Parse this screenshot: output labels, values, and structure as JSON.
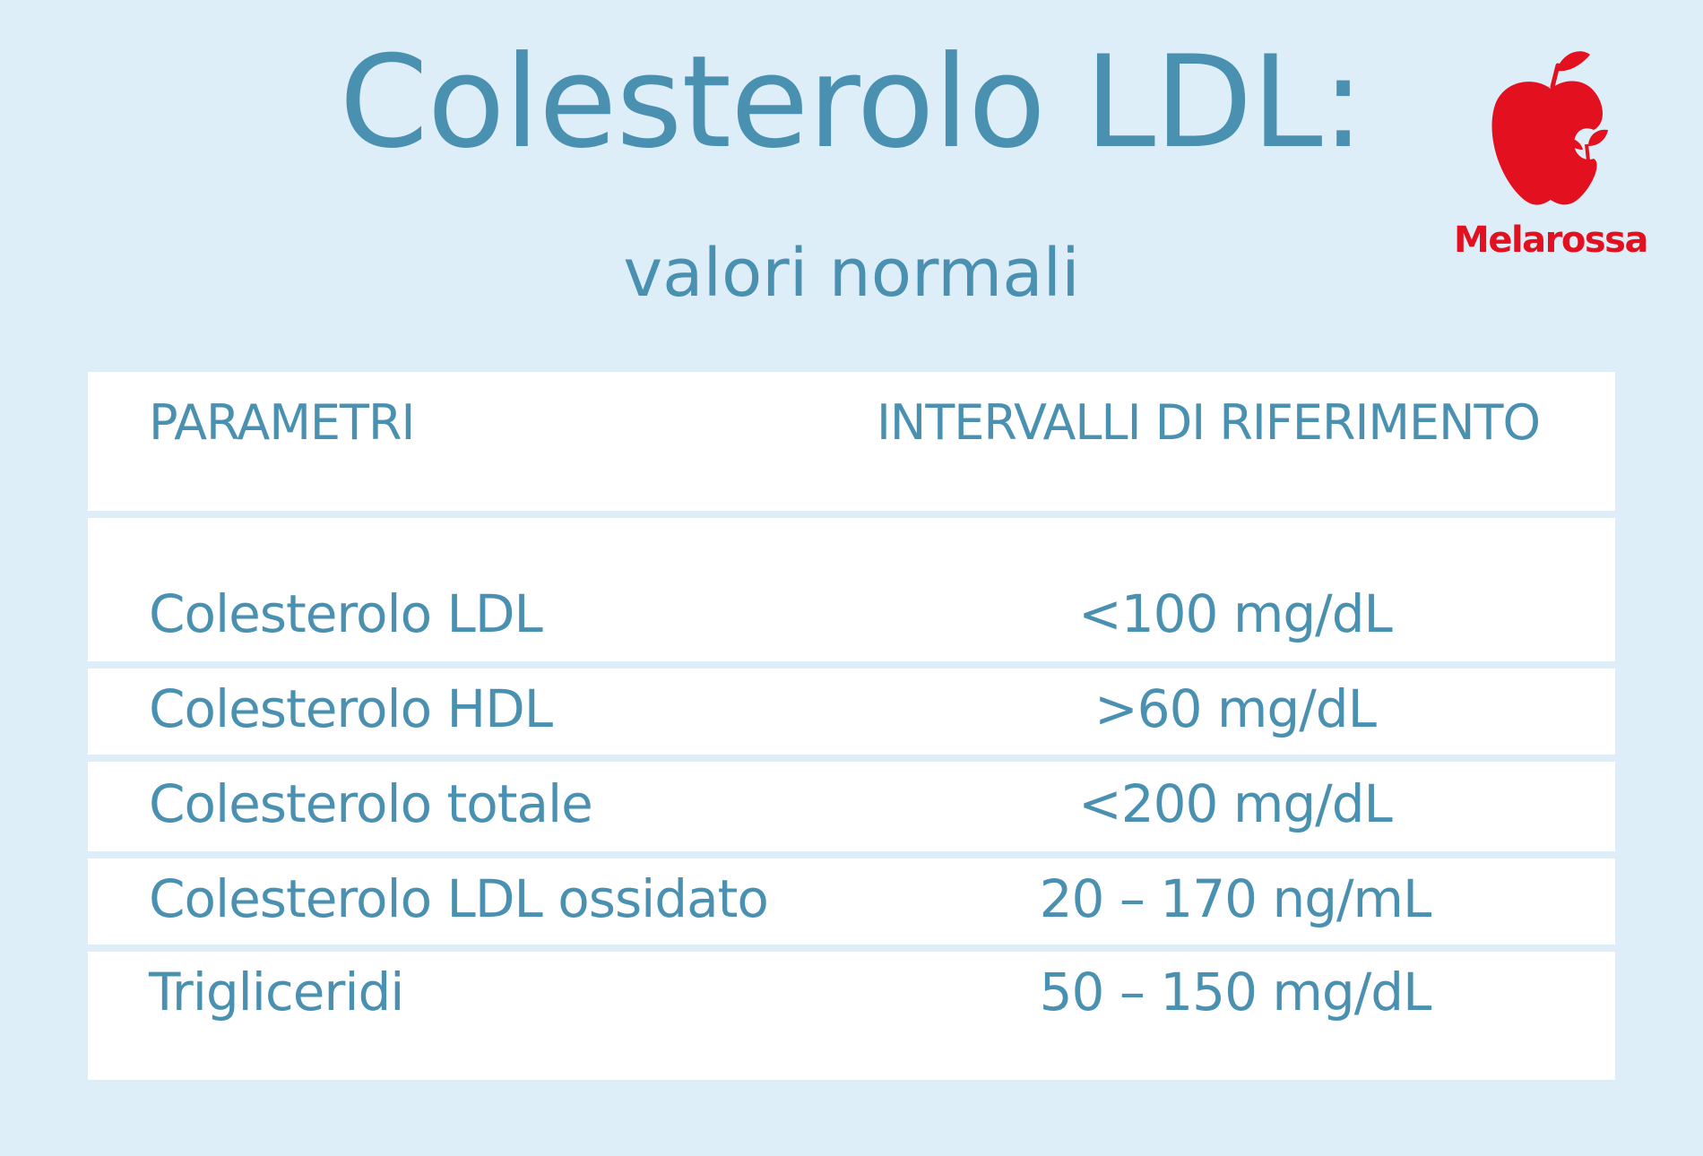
{
  "title": "Colesterolo LDL:",
  "subtitle": "valori normali",
  "logo": {
    "text": "Melarossa",
    "icon": "apple-icon",
    "color": "#e3101f"
  },
  "table": {
    "headers": {
      "param": "PARAMETRI",
      "value": "INTERVALLI DI RIFERIMENTO"
    },
    "rows": [
      {
        "param": "Colesterolo LDL",
        "value": "<100 mg/dL"
      },
      {
        "param": "Colesterolo HDL",
        "value": ">60 mg/dL"
      },
      {
        "param": "Colesterolo totale",
        "value": "<200 mg/dL"
      },
      {
        "param": "Colesterolo LDL ossidato",
        "value": "20 – 170 ng/mL"
      },
      {
        "param": "Trigliceridi",
        "value": "50 – 150 mg/dL"
      }
    ]
  },
  "colors": {
    "background": "#ddeef8",
    "text": "#4a90b0",
    "table": "#ffffff"
  }
}
